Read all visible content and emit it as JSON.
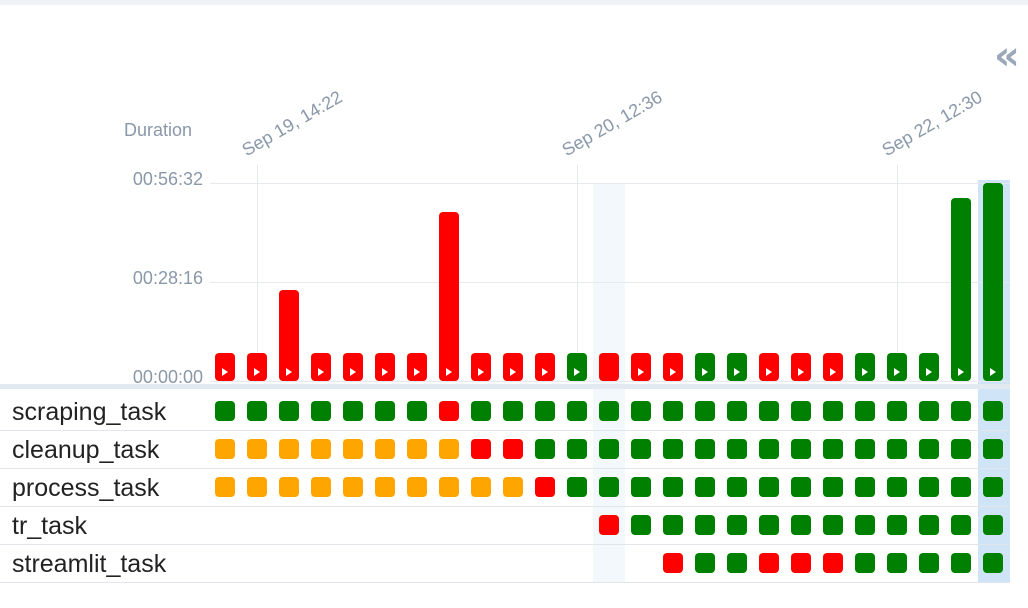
{
  "chart_data": {
    "type": "bar",
    "y_axis_title": "Duration",
    "y_ticks": [
      {
        "label": "00:56:32",
        "seconds": 3392
      },
      {
        "label": "00:28:16",
        "seconds": 1696
      },
      {
        "label": "00:00:00",
        "seconds": 0
      }
    ],
    "ylim_seconds": [
      0,
      3392
    ],
    "date_labels": [
      {
        "label": "Sep 19, 14:22",
        "run_index": 1
      },
      {
        "label": "Sep 20, 12:36",
        "run_index": 11
      },
      {
        "label": "Sep 22, 12:30",
        "run_index": 21
      }
    ],
    "runs": [
      {
        "status": "failed",
        "duration_seconds": 150
      },
      {
        "status": "failed",
        "duration_seconds": 150
      },
      {
        "status": "failed",
        "duration_seconds": 1560
      },
      {
        "status": "failed",
        "duration_seconds": 150
      },
      {
        "status": "failed",
        "duration_seconds": 150
      },
      {
        "status": "failed",
        "duration_seconds": 150
      },
      {
        "status": "failed",
        "duration_seconds": 150
      },
      {
        "status": "failed",
        "duration_seconds": 2890
      },
      {
        "status": "failed",
        "duration_seconds": 150
      },
      {
        "status": "failed",
        "duration_seconds": 150
      },
      {
        "status": "failed",
        "duration_seconds": 150
      },
      {
        "status": "success",
        "duration_seconds": 150
      },
      {
        "status": "failed",
        "duration_seconds": 150,
        "highlighted": true
      },
      {
        "status": "failed",
        "duration_seconds": 150
      },
      {
        "status": "failed",
        "duration_seconds": 150
      },
      {
        "status": "success",
        "duration_seconds": 150
      },
      {
        "status": "success",
        "duration_seconds": 150
      },
      {
        "status": "failed",
        "duration_seconds": 150
      },
      {
        "status": "failed",
        "duration_seconds": 150
      },
      {
        "status": "failed",
        "duration_seconds": 150
      },
      {
        "status": "success",
        "duration_seconds": 150
      },
      {
        "status": "success",
        "duration_seconds": 150
      },
      {
        "status": "success",
        "duration_seconds": 150
      },
      {
        "status": "success",
        "duration_seconds": 3130
      },
      {
        "status": "success",
        "duration_seconds": 3392,
        "selected": true
      }
    ]
  },
  "tasks": [
    {
      "name": "scraping_task",
      "states": [
        "success",
        "success",
        "success",
        "success",
        "success",
        "success",
        "success",
        "failed",
        "success",
        "success",
        "success",
        "success",
        "success",
        "success",
        "success",
        "success",
        "success",
        "success",
        "success",
        "success",
        "success",
        "success",
        "success",
        "success",
        "success"
      ]
    },
    {
      "name": "cleanup_task",
      "states": [
        "upstream_failed",
        "upstream_failed",
        "upstream_failed",
        "upstream_failed",
        "upstream_failed",
        "upstream_failed",
        "upstream_failed",
        "upstream_failed",
        "failed",
        "failed",
        "success",
        "success",
        "success",
        "success",
        "success",
        "success",
        "success",
        "success",
        "success",
        "success",
        "success",
        "success",
        "success",
        "success",
        "success"
      ]
    },
    {
      "name": "process_task",
      "states": [
        "upstream_failed",
        "upstream_failed",
        "upstream_failed",
        "upstream_failed",
        "upstream_failed",
        "upstream_failed",
        "upstream_failed",
        "upstream_failed",
        "upstream_failed",
        "upstream_failed",
        "failed",
        "success",
        "success",
        "success",
        "success",
        "success",
        "success",
        "success",
        "success",
        "success",
        "success",
        "success",
        "success",
        "success",
        "success"
      ]
    },
    {
      "name": "tr_task",
      "states": [
        null,
        null,
        null,
        null,
        null,
        null,
        null,
        null,
        null,
        null,
        null,
        null,
        "failed",
        "success",
        "success",
        "success",
        "success",
        "success",
        "success",
        "success",
        "success",
        "success",
        "success",
        "success",
        "success"
      ]
    },
    {
      "name": "streamlit_task",
      "states": [
        null,
        null,
        null,
        null,
        null,
        null,
        null,
        null,
        null,
        null,
        null,
        null,
        null,
        null,
        "failed",
        "success",
        "success",
        "failed",
        "failed",
        "failed",
        "success",
        "success",
        "success",
        "success",
        "success"
      ]
    }
  ],
  "status_colors": {
    "success": "#008000",
    "failed": "#ff0000",
    "upstream_failed": "#ffa500"
  },
  "icons": {
    "collapse": "double-chevron-left-icon",
    "run_marker": "play-icon"
  }
}
